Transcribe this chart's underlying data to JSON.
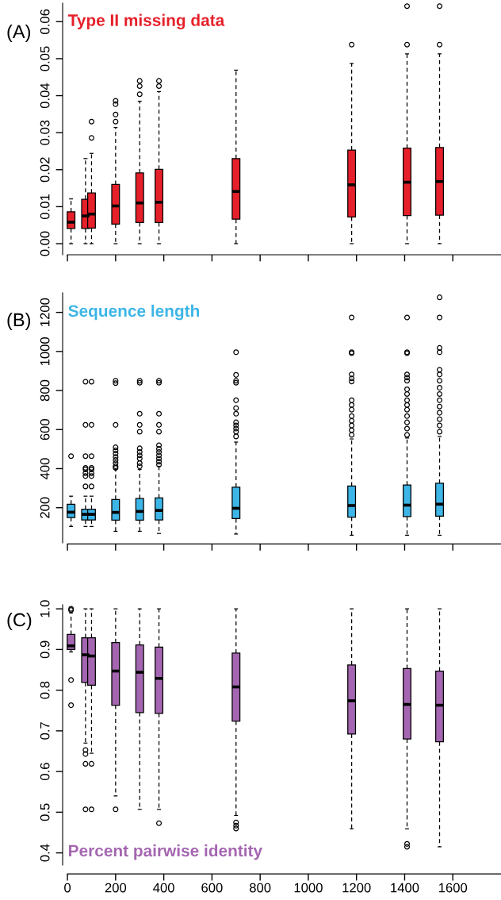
{
  "chart_data": [
    {
      "type": "box",
      "title": "Type II missing data",
      "color": "#e6202a",
      "annotations": [
        "(A)"
      ],
      "x": [
        15,
        75,
        100,
        200,
        300,
        380,
        700,
        1180,
        1410,
        1545
      ],
      "boxes": [
        {
          "low": 0,
          "q1": 0.0041,
          "median": 0.0058,
          "q3": 0.0086,
          "high": 0.0121
        },
        {
          "low": 0,
          "q1": 0.0041,
          "median": 0.0075,
          "q3": 0.012,
          "high": 0.023
        },
        {
          "low": 0,
          "q1": 0.0042,
          "median": 0.008,
          "q3": 0.0137,
          "high": 0.0244,
          "outliers": [
            0.033,
            0.0286
          ]
        },
        {
          "low": 0,
          "q1": 0.0053,
          "median": 0.0102,
          "q3": 0.016,
          "high": 0.0314,
          "outliers": [
            0.0386,
            0.0377,
            0.0349,
            0.033
          ]
        },
        {
          "low": 0,
          "q1": 0.0057,
          "median": 0.011,
          "q3": 0.0191,
          "high": 0.0385,
          "outliers": [
            0.044,
            0.0426,
            0.0404
          ]
        },
        {
          "low": 0,
          "q1": 0.0057,
          "median": 0.0112,
          "q3": 0.0201,
          "high": 0.0411,
          "outliers": [
            0.044,
            0.0426
          ]
        },
        {
          "low": 0,
          "q1": 0.0066,
          "median": 0.0141,
          "q3": 0.023,
          "high": 0.0469
        },
        {
          "low": 0,
          "q1": 0.0072,
          "median": 0.0159,
          "q3": 0.0253,
          "high": 0.0487,
          "outliers": [
            0.0538
          ]
        },
        {
          "low": 0,
          "q1": 0.0076,
          "median": 0.0166,
          "q3": 0.0258,
          "high": 0.0513,
          "outliers": [
            0.0538,
            0.0642
          ]
        },
        {
          "low": 0,
          "q1": 0.0077,
          "median": 0.0168,
          "q3": 0.026,
          "high": 0.0513,
          "outliers": [
            0.0538,
            0.0642
          ]
        }
      ],
      "xlim": [
        -20,
        1800
      ],
      "xticks": [
        0,
        200,
        400,
        600,
        800,
        1000,
        1200,
        1400,
        1600
      ],
      "ylim": [
        -0.003,
        0.065
      ],
      "yticks": [
        {
          "value": 0,
          "label": "0.00"
        },
        {
          "value": 0.01,
          "label": "0.01"
        },
        {
          "value": 0.02,
          "label": "0.02"
        },
        {
          "value": 0.03,
          "label": "0.03"
        },
        {
          "value": 0.04,
          "label": "0.04"
        },
        {
          "value": 0.05,
          "label": "0.05"
        },
        {
          "value": 0.06,
          "label": "0.06"
        }
      ],
      "tick_labels": "y"
    },
    {
      "type": "box",
      "title": "Sequence length",
      "color": "#3db5e6",
      "annotations": [
        "(B)"
      ],
      "x": [
        15,
        75,
        100,
        200,
        300,
        380,
        700,
        1180,
        1410,
        1545
      ],
      "boxes": [
        {
          "low": 104,
          "q1": 150,
          "median": 177,
          "q3": 218,
          "high": 259,
          "outliers": [
            464
          ]
        },
        {
          "low": 104,
          "q1": 137,
          "median": 166,
          "q3": 192,
          "high": 259,
          "outliers": [
            845,
            624,
            464,
            404,
            396,
            377,
            362,
            309
          ]
        },
        {
          "low": 104,
          "q1": 137,
          "median": 166,
          "q3": 192,
          "high": 259,
          "outliers": [
            845,
            624,
            464,
            404,
            396,
            377,
            362,
            309
          ]
        },
        {
          "low": 79,
          "q1": 136,
          "median": 176,
          "q3": 242,
          "high": 396,
          "outliers": [
            850,
            838,
            624,
            509,
            493,
            477,
            460,
            444,
            428,
            412,
            404
          ]
        },
        {
          "low": 79,
          "q1": 136,
          "median": 181,
          "q3": 247,
          "high": 396,
          "outliers": [
            850,
            840,
            681,
            624,
            589,
            504,
            485,
            468,
            452,
            428,
            412
          ]
        },
        {
          "low": 68,
          "q1": 137,
          "median": 186,
          "q3": 250,
          "high": 412,
          "outliers": [
            850,
            840,
            681,
            624,
            589,
            520,
            501,
            485,
            468,
            452,
            436,
            420
          ]
        },
        {
          "low": 65,
          "q1": 144,
          "median": 197,
          "q3": 305,
          "high": 536,
          "outliers": [
            996,
            880,
            850,
            840,
            750,
            710,
            681,
            637,
            621,
            605,
            589,
            565
          ]
        },
        {
          "low": 59,
          "q1": 152,
          "median": 211,
          "q3": 311,
          "high": 552,
          "outliers": [
            1174,
            996,
            991,
            882,
            862,
            846,
            750,
            726,
            702,
            669,
            645,
            621,
            597,
            573
          ]
        },
        {
          "low": 59,
          "q1": 155,
          "median": 213,
          "q3": 316,
          "high": 557,
          "outliers": [
            1174,
            996,
            991,
            882,
            866,
            850,
            806,
            782,
            750,
            726,
            702,
            669,
            637,
            605,
            573
          ]
        },
        {
          "low": 59,
          "q1": 157,
          "median": 218,
          "q3": 325,
          "high": 565,
          "outliers": [
            1277,
            1174,
            1018,
            996,
            906,
            882,
            850,
            814,
            782,
            750,
            718,
            686,
            653,
            621,
            589
          ]
        }
      ],
      "xlim": [
        -20,
        1800
      ],
      "xticks": [
        0,
        200,
        400,
        600,
        800,
        1000,
        1200,
        1400,
        1600
      ],
      "ylim": [
        20,
        1300
      ],
      "yticks": [
        200,
        400,
        600,
        800,
        1000,
        1200
      ],
      "tick_labels": "y"
    },
    {
      "type": "box",
      "title": "Percent pairwise identity",
      "color": "#a466b0",
      "annotations": [
        "(C)"
      ],
      "x": [
        15,
        75,
        100,
        200,
        300,
        380,
        700,
        1180,
        1410,
        1545
      ],
      "boxes": [
        {
          "low": 0.894,
          "q1": 0.9,
          "median": 0.909,
          "q3": 0.937,
          "high": 0.99,
          "outliers": [
            1.0,
            0.997,
            0.825,
            0.763
          ]
        },
        {
          "low": 0.67,
          "q1": 0.819,
          "median": 0.887,
          "q3": 0.929,
          "high": 1.0,
          "outliers": [
            0.653,
            0.643,
            0.619,
            0.507
          ]
        },
        {
          "low": 0.645,
          "q1": 0.812,
          "median": 0.884,
          "q3": 0.929,
          "high": 1.0,
          "outliers": [
            0.619,
            0.507
          ]
        },
        {
          "low": 0.54,
          "q1": 0.763,
          "median": 0.847,
          "q3": 0.917,
          "high": 1.0,
          "outliers": [
            0.507
          ]
        },
        {
          "low": 0.507,
          "q1": 0.745,
          "median": 0.844,
          "q3": 0.911,
          "high": 1.0
        },
        {
          "low": 0.507,
          "q1": 0.743,
          "median": 0.829,
          "q3": 0.906,
          "high": 1.0,
          "outliers": [
            0.473
          ]
        },
        {
          "low": 0.492,
          "q1": 0.724,
          "median": 0.808,
          "q3": 0.891,
          "high": 1.0,
          "outliers": [
            0.475,
            0.467,
            0.46
          ]
        },
        {
          "low": 0.459,
          "q1": 0.692,
          "median": 0.774,
          "q3": 0.862,
          "high": 1.0
        },
        {
          "low": 0.459,
          "q1": 0.68,
          "median": 0.765,
          "q3": 0.853,
          "high": 1.0,
          "outliers": [
            0.422,
            0.415
          ]
        },
        {
          "low": 0.415,
          "q1": 0.673,
          "median": 0.763,
          "q3": 0.847,
          "high": 1.0
        }
      ],
      "xlim": [
        -20,
        1800
      ],
      "xticks": [
        0,
        200,
        400,
        600,
        800,
        1000,
        1200,
        1400,
        1600
      ],
      "ylim": [
        0.37,
        1.01
      ],
      "yticks": [
        0.4,
        0.5,
        0.6,
        0.7,
        0.8,
        0.9,
        {
          "value": 1.0,
          "label": "1.0"
        }
      ]
    }
  ]
}
